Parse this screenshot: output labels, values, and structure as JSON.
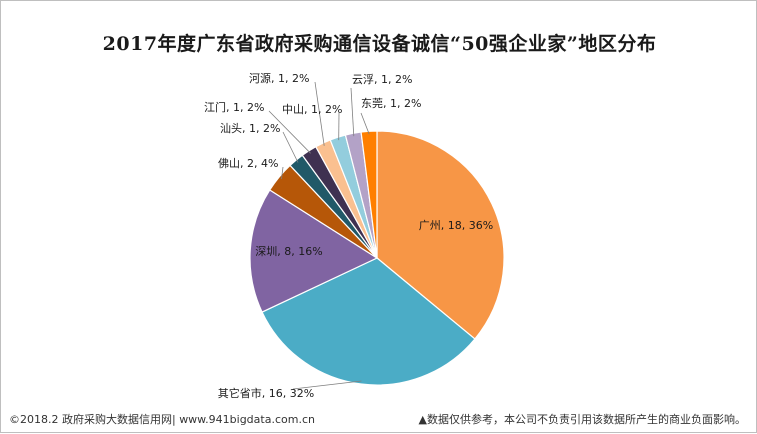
{
  "title": "2017年度广东省政府采购通信设备诚信“50强企业家”地区分布",
  "footer": {
    "source": "©2018.2 政府采购大数据信用网| www.941bigdata.com.cn",
    "disclaimer": "▲数据仅供参考，本公司不负责引用该数据所产生的商业负面影响。"
  },
  "chart_data": {
    "type": "pie",
    "title": "2017年度广东省政府采购通信设备诚信“50强企业家”地区分布",
    "labels_format": "name, count, percent",
    "slices": [
      {
        "name": "广州",
        "value": 18,
        "percent": "36%",
        "color": "#F79646",
        "label": "广州, 18, 36%"
      },
      {
        "name": "其它省市",
        "value": 16,
        "percent": "32%",
        "color": "#4BACC6",
        "label": "其它省市, 16, 32%"
      },
      {
        "name": "深圳",
        "value": 8,
        "percent": "16%",
        "color": "#8064A2",
        "label": "深圳, 8, 16%"
      },
      {
        "name": "佛山",
        "value": 2,
        "percent": "4%",
        "color": "#B65708",
        "label": "佛山, 2, 4%"
      },
      {
        "name": "汕头",
        "value": 1,
        "percent": "2%",
        "color": "#215968",
        "label": "汕头, 1, 2%"
      },
      {
        "name": "江门",
        "value": 1,
        "percent": "2%",
        "color": "#3F3151",
        "label": "江门, 1, 2%"
      },
      {
        "name": "河源",
        "value": 1,
        "percent": "2%",
        "color": "#FAC090",
        "label": "河源, 1, 2%"
      },
      {
        "name": "中山",
        "value": 1,
        "percent": "2%",
        "color": "#93CDDD",
        "label": "中山, 1, 2%"
      },
      {
        "name": "云浮",
        "value": 1,
        "percent": "2%",
        "color": "#B3A2C7",
        "label": "云浮, 1, 2%"
      },
      {
        "name": "东莞",
        "value": 1,
        "percent": "2%",
        "color": "#FF7F00",
        "label": "东莞, 1, 2%"
      }
    ]
  }
}
